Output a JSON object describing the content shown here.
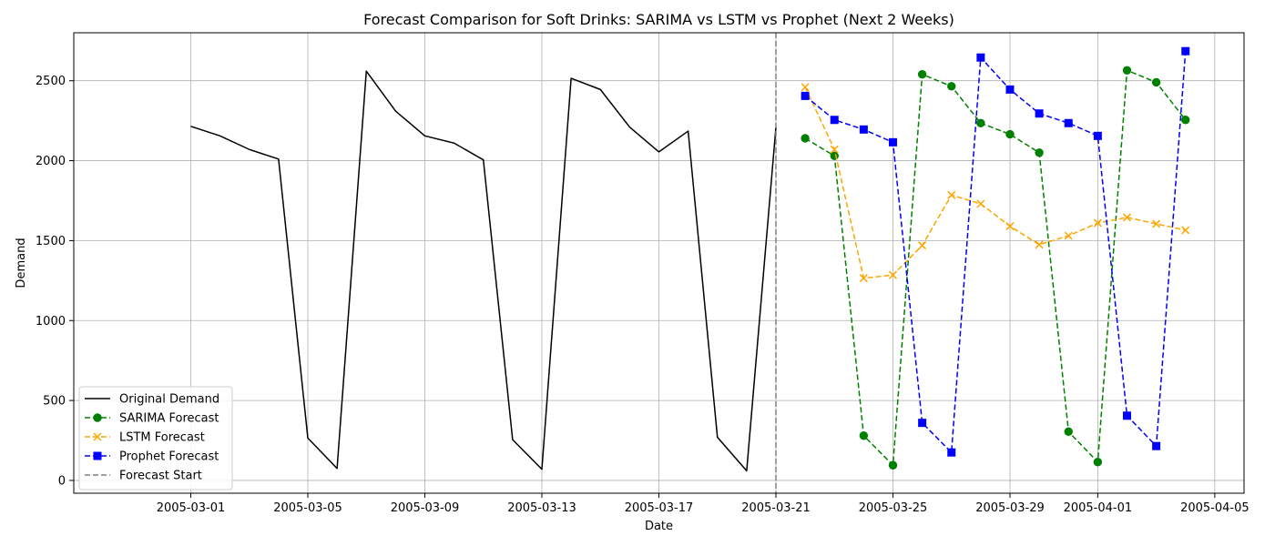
{
  "chart_data": {
    "type": "line",
    "title": "Forecast Comparison for Soft Drinks: SARIMA vs LSTM vs Prophet (Next 2 Weeks)",
    "xlabel": "Date",
    "ylabel": "Demand",
    "x_axis_type": "date",
    "xlim": [
      "2005-02-25",
      "2005-04-06"
    ],
    "ylim": [
      -80,
      2800
    ],
    "x_ticks": [
      "2005-03-01",
      "2005-03-05",
      "2005-03-09",
      "2005-03-13",
      "2005-03-17",
      "2005-03-21",
      "2005-03-25",
      "2005-03-29",
      "2005-04-01",
      "2005-04-05"
    ],
    "y_ticks": [
      0,
      500,
      1000,
      1500,
      2000,
      2500
    ],
    "grid": true,
    "legend_position": "lower-left",
    "forecast_start": {
      "label": "Forecast Start",
      "x": "2005-03-21",
      "color": "#808080"
    },
    "series": [
      {
        "name": "Original Demand",
        "color": "#000000",
        "style": "solid",
        "marker": "none",
        "x": [
          "2005-03-01",
          "2005-03-02",
          "2005-03-03",
          "2005-03-04",
          "2005-03-05",
          "2005-03-06",
          "2005-03-07",
          "2005-03-08",
          "2005-03-09",
          "2005-03-10",
          "2005-03-11",
          "2005-03-12",
          "2005-03-13",
          "2005-03-14",
          "2005-03-15",
          "2005-03-16",
          "2005-03-17",
          "2005-03-18",
          "2005-03-19",
          "2005-03-20",
          "2005-03-21"
        ],
        "values": [
          2215,
          2155,
          2070,
          2010,
          265,
          75,
          2560,
          2310,
          2155,
          2110,
          2005,
          255,
          70,
          2515,
          2445,
          2210,
          2055,
          2185,
          270,
          60,
          2210
        ]
      },
      {
        "name": "SARIMA Forecast",
        "color": "#008000",
        "style": "dashed",
        "marker": "circle",
        "x": [
          "2005-03-22",
          "2005-03-23",
          "2005-03-24",
          "2005-03-25",
          "2005-03-26",
          "2005-03-27",
          "2005-03-28",
          "2005-03-29",
          "2005-03-30",
          "2005-03-31",
          "2005-04-01",
          "2005-04-02",
          "2005-04-03",
          "2005-04-04"
        ],
        "values": [
          2140,
          2030,
          280,
          95,
          2540,
          2465,
          2235,
          2165,
          2050,
          305,
          115,
          2565,
          2490,
          2255
        ]
      },
      {
        "name": "LSTM Forecast",
        "color": "#ffa500",
        "style": "dashed",
        "marker": "x",
        "x": [
          "2005-03-22",
          "2005-03-23",
          "2005-03-24",
          "2005-03-25",
          "2005-03-26",
          "2005-03-27",
          "2005-03-28",
          "2005-03-29",
          "2005-03-30",
          "2005-03-31",
          "2005-04-01",
          "2005-04-02",
          "2005-04-03",
          "2005-04-04"
        ],
        "values": [
          2460,
          2070,
          1265,
          1285,
          1470,
          1785,
          1730,
          1590,
          1475,
          1530,
          1610,
          1645,
          1605,
          1565
        ]
      },
      {
        "name": "Prophet Forecast",
        "color": "#0000ff",
        "style": "dashed",
        "marker": "square",
        "x": [
          "2005-03-22",
          "2005-03-23",
          "2005-03-24",
          "2005-03-25",
          "2005-03-26",
          "2005-03-27",
          "2005-03-28",
          "2005-03-29",
          "2005-03-30",
          "2005-03-31",
          "2005-04-01",
          "2005-04-02",
          "2005-04-03",
          "2005-04-04"
        ],
        "values": [
          2405,
          2255,
          2195,
          2115,
          360,
          175,
          2645,
          2445,
          2295,
          2235,
          2155,
          405,
          215,
          2685
        ]
      }
    ]
  }
}
